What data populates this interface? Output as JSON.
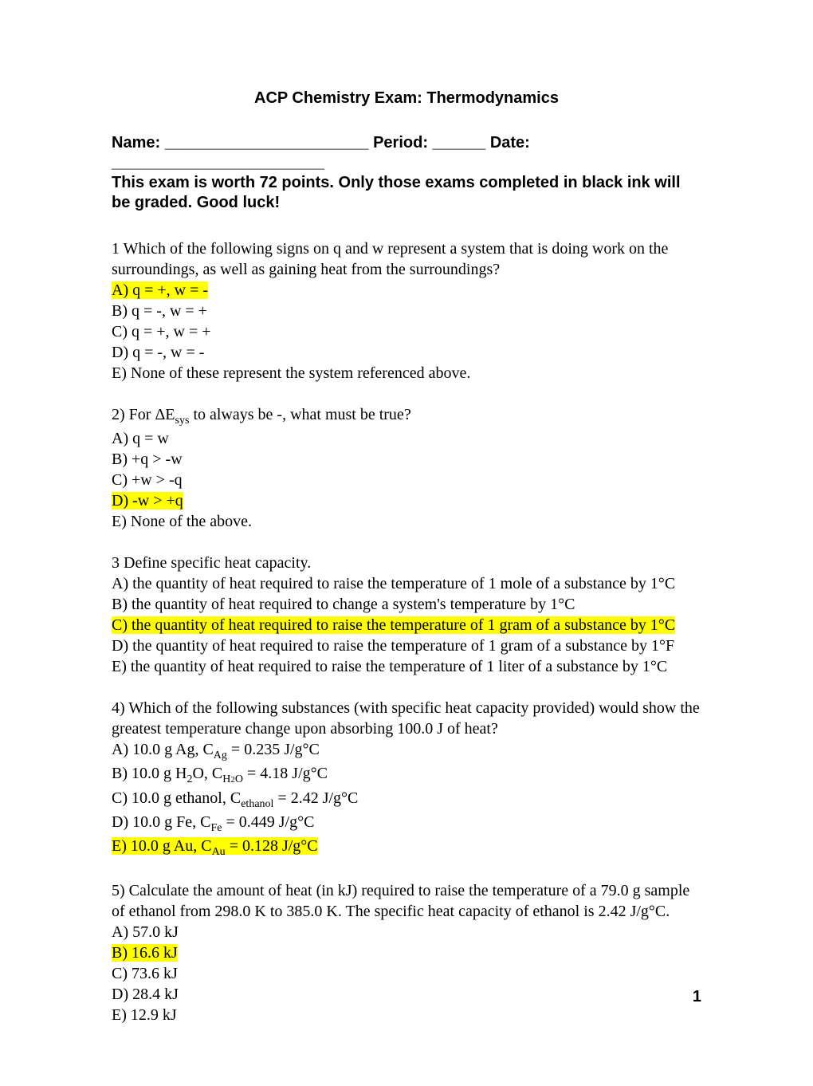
{
  "title": "ACP Chemistry Exam: Thermodynamics",
  "header_line1": "Name: _______________________   Period: ______   Date: ________________________",
  "header_line2": "This exam is worth 72 points.  Only those exams completed in black ink will be graded.  Good luck!",
  "q1": {
    "text": "1 Which of the following signs on q and w represent a system that is doing work on the surroundings, as well as gaining heat from the surroundings?",
    "a": "A) q = +, w = -",
    "b": "B) q = -, w = +",
    "c": "C) q = +, w = +",
    "d": "D) q = -, w = -",
    "e": "E) None of these represent the system referenced above."
  },
  "q2": {
    "prefix": "2) For ΔE",
    "sub": "sys",
    "suffix": " to always be -, what must be true?",
    "a": "A) q = w",
    "b": "B) +q > -w",
    "c": "C) +w > -q",
    "d": "D) -w > +q",
    "e": "E) None of the above."
  },
  "q3": {
    "text": "3 Define specific heat capacity.",
    "a": "A) the quantity of heat required to raise the temperature of 1 mole of a substance by 1°C",
    "b": "B) the quantity of heat required to change a system's temperature by 1°C",
    "c": "C) the quantity of heat required to raise the temperature of 1 gram of a substance by 1°C",
    "d": "D) the quantity of heat required to raise the temperature of 1 gram of a substance by 1°F",
    "e": "E) the quantity of heat required to raise the temperature of 1 liter of a substance by 1°C"
  },
  "q4": {
    "text": "4) Which of the following substances (with specific heat capacity provided) would show the greatest temperature change upon absorbing 100.0 J of heat?",
    "a_pre": "A) 10.0 g Ag, C",
    "a_sub": "Ag",
    "a_post": " = 0.235 J/g°C",
    "b_pre": "B) 10.0 g H",
    "b_sub1": "2",
    "b_mid": "O, C",
    "b_sub2": "H",
    "b_sub3": "2",
    "b_sub4": "O",
    "b_post": " = 4.18 J/g°C",
    "c_pre": "C) 10.0 g ethanol, C",
    "c_sub": "ethanol",
    "c_post": " = 2.42 J/g°C",
    "d_pre": "D) 10.0 g Fe, C",
    "d_sub": "Fe",
    "d_post": " = 0.449 J/g°C",
    "e_pre": "E) 10.0 g Au, C",
    "e_sub": "Au",
    "e_post": " = 0.128 J/g°C"
  },
  "q5": {
    "text": "5) Calculate the amount of heat (in kJ) required to raise the temperature of a 79.0 g sample of ethanol from 298.0 K to 385.0 K.  The specific heat capacity of ethanol is 2.42 J/g°C.",
    "a": "A) 57.0 kJ",
    "b": "B) 16.6 kJ",
    "c": "C) 73.6 kJ",
    "d": "D) 28.4 kJ",
    "e": "E) 12.9 kJ"
  },
  "page_number": "1",
  "colors": {
    "highlight": "#ffff00",
    "text": "#000000",
    "background": "#ffffff"
  }
}
